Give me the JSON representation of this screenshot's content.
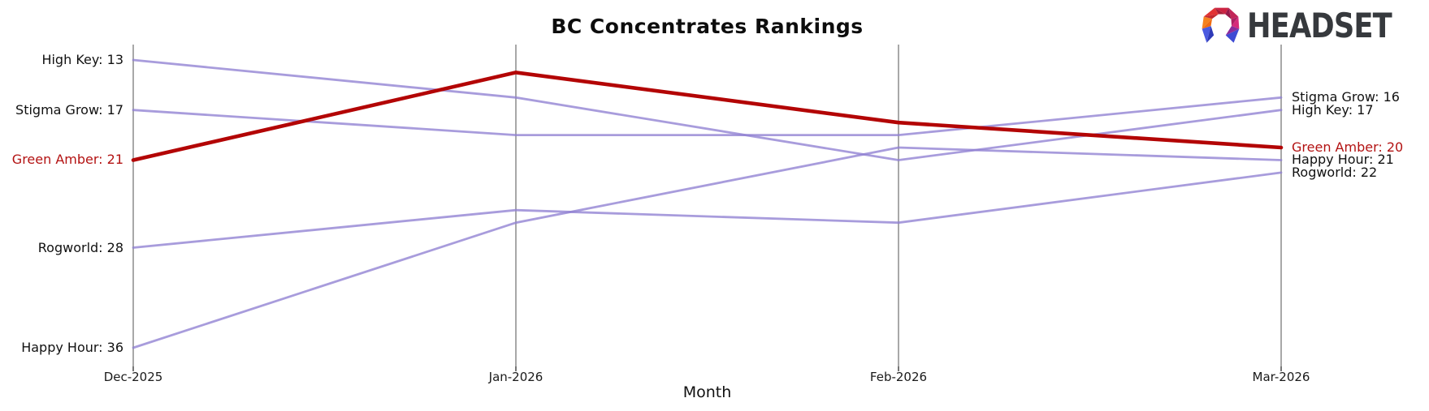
{
  "header": {
    "logo_text": "HEADSET"
  },
  "chart_data": {
    "type": "line",
    "subtype": "bump-ranking-chart",
    "title": "BC Concentrates Rankings",
    "xlabel": "Month",
    "categories": [
      "Dec-2025",
      "Jan-2026",
      "Feb-2026",
      "Mar-2026"
    ],
    "series": [
      {
        "name": "High Key",
        "values": [
          13,
          16,
          21,
          17
        ],
        "color": "#8f80d2",
        "highlight": false,
        "left_label": "High Key: 13",
        "right_label": "High Key: 17"
      },
      {
        "name": "Stigma Grow",
        "values": [
          17,
          19,
          19,
          16
        ],
        "color": "#8f80d2",
        "highlight": false,
        "left_label": "Stigma Grow: 17",
        "right_label": "Stigma Grow: 16"
      },
      {
        "name": "Rogworld",
        "values": [
          28,
          25,
          26,
          22
        ],
        "color": "#8f80d2",
        "highlight": false,
        "left_label": "Rogworld: 28",
        "right_label": "Rogworld: 22"
      },
      {
        "name": "Happy Hour",
        "values": [
          36,
          26,
          20,
          21
        ],
        "color": "#8f80d2",
        "highlight": false,
        "left_label": "Happy Hour: 36",
        "right_label": "Happy Hour: 21"
      },
      {
        "name": "Green Amber",
        "values": [
          21,
          14,
          18,
          20
        ],
        "color": "#b30505",
        "highlight": true,
        "left_label": "Green Amber: 21",
        "right_label": "Green Amber: 20"
      }
    ],
    "value_axis": {
      "min": 13,
      "max": 36,
      "direction": "lower value drawn higher (rank)"
    },
    "legend_position": "none",
    "grid": "vertical month axes only",
    "colors": {
      "highlight_line": "#b30505",
      "normal_line": "#a79fdd",
      "highlight_label": "#b31212",
      "normal_label": "#111111",
      "axis_line": "#a8a8a8"
    }
  }
}
